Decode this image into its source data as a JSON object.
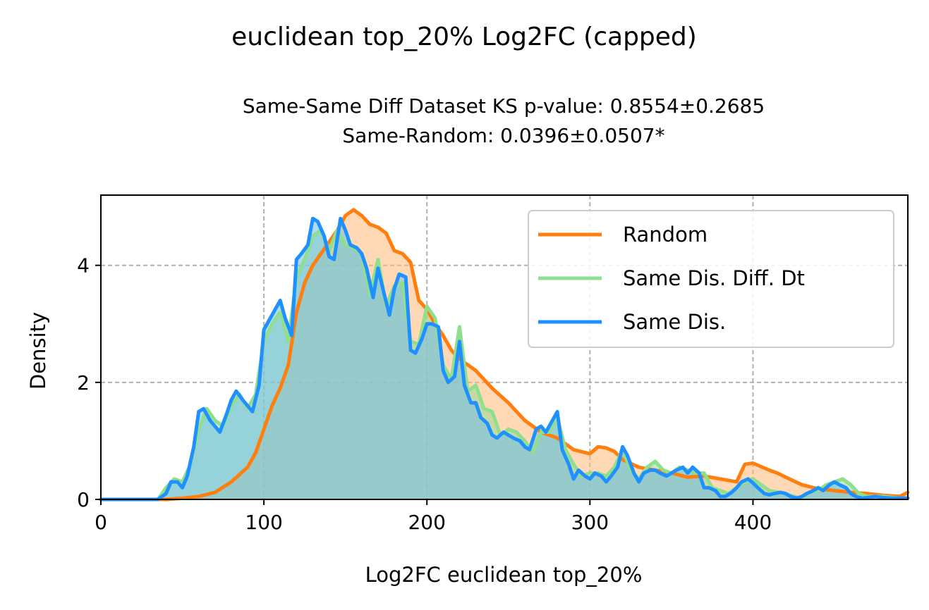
{
  "figure": {
    "title": "euclidean top_20% Log2FC (capped)",
    "subtitle_line1": "Same-Same Diff Dataset  KS p-value: 0.8554±0.2685",
    "subtitle_line2": "Same-Random: 0.0396±0.0507*"
  },
  "chart_data": {
    "type": "area",
    "xlabel": "Log2FC euclidean top_20%",
    "ylabel": "Density",
    "xlim": [
      0,
      495
    ],
    "ylim": [
      0,
      5.2
    ],
    "xticks": [
      0,
      100,
      200,
      300,
      400
    ],
    "yticks": [
      0,
      2,
      4
    ],
    "grid": true,
    "legend_position": "top-right",
    "series": [
      {
        "name": "Random",
        "color": "#ff7f0e",
        "fill": "#ffb97a",
        "points": [
          [
            0,
            0
          ],
          [
            30,
            0
          ],
          [
            40,
            0
          ],
          [
            50,
            0.02
          ],
          [
            60,
            0.05
          ],
          [
            70,
            0.12
          ],
          [
            80,
            0.3
          ],
          [
            90,
            0.55
          ],
          [
            95,
            0.8
          ],
          [
            100,
            1.2
          ],
          [
            105,
            1.6
          ],
          [
            110,
            1.9
          ],
          [
            115,
            2.3
          ],
          [
            120,
            3.2
          ],
          [
            125,
            3.7
          ],
          [
            130,
            4.0
          ],
          [
            135,
            4.2
          ],
          [
            140,
            4.4
          ],
          [
            145,
            4.6
          ],
          [
            150,
            4.85
          ],
          [
            155,
            4.95
          ],
          [
            160,
            4.85
          ],
          [
            165,
            4.7
          ],
          [
            170,
            4.65
          ],
          [
            175,
            4.55
          ],
          [
            180,
            4.25
          ],
          [
            185,
            4.2
          ],
          [
            190,
            4.05
          ],
          [
            195,
            3.4
          ],
          [
            200,
            3.25
          ],
          [
            205,
            3.0
          ],
          [
            210,
            2.8
          ],
          [
            215,
            2.55
          ],
          [
            220,
            2.4
          ],
          [
            225,
            2.3
          ],
          [
            230,
            2.2
          ],
          [
            240,
            1.9
          ],
          [
            250,
            1.65
          ],
          [
            260,
            1.35
          ],
          [
            270,
            1.15
          ],
          [
            280,
            1.05
          ],
          [
            290,
            0.85
          ],
          [
            300,
            0.78
          ],
          [
            305,
            0.9
          ],
          [
            310,
            0.88
          ],
          [
            315,
            0.82
          ],
          [
            320,
            0.68
          ],
          [
            330,
            0.55
          ],
          [
            340,
            0.5
          ],
          [
            350,
            0.45
          ],
          [
            360,
            0.38
          ],
          [
            370,
            0.4
          ],
          [
            380,
            0.35
          ],
          [
            390,
            0.3
          ],
          [
            395,
            0.6
          ],
          [
            400,
            0.62
          ],
          [
            410,
            0.5
          ],
          [
            415,
            0.45
          ],
          [
            420,
            0.38
          ],
          [
            430,
            0.25
          ],
          [
            440,
            0.18
          ],
          [
            450,
            0.15
          ],
          [
            460,
            0.12
          ],
          [
            470,
            0.1
          ],
          [
            480,
            0.07
          ],
          [
            490,
            0.05
          ],
          [
            495,
            0.12
          ]
        ]
      },
      {
        "name": "Same Dis. Diff. Dt",
        "color": "#90df8c",
        "fill": "#9ad798",
        "points": [
          [
            0,
            0
          ],
          [
            35,
            0
          ],
          [
            40,
            0.2
          ],
          [
            45,
            0.35
          ],
          [
            50,
            0.3
          ],
          [
            55,
            0.6
          ],
          [
            60,
            1.2
          ],
          [
            65,
            1.55
          ],
          [
            70,
            1.35
          ],
          [
            75,
            1.25
          ],
          [
            80,
            1.6
          ],
          [
            85,
            1.8
          ],
          [
            90,
            1.55
          ],
          [
            95,
            1.8
          ],
          [
            100,
            2.7
          ],
          [
            105,
            3.0
          ],
          [
            110,
            3.2
          ],
          [
            115,
            2.7
          ],
          [
            120,
            3.8
          ],
          [
            125,
            4.1
          ],
          [
            130,
            4.5
          ],
          [
            135,
            4.6
          ],
          [
            140,
            4.25
          ],
          [
            145,
            4.6
          ],
          [
            150,
            4.35
          ],
          [
            155,
            4.3
          ],
          [
            160,
            4.2
          ],
          [
            165,
            3.5
          ],
          [
            170,
            4.1
          ],
          [
            175,
            3.3
          ],
          [
            180,
            3.65
          ],
          [
            185,
            3.7
          ],
          [
            190,
            2.7
          ],
          [
            195,
            2.65
          ],
          [
            200,
            3.3
          ],
          [
            205,
            3.1
          ],
          [
            210,
            2.3
          ],
          [
            215,
            2.05
          ],
          [
            220,
            2.95
          ],
          [
            225,
            1.85
          ],
          [
            230,
            1.95
          ],
          [
            235,
            1.55
          ],
          [
            240,
            1.5
          ],
          [
            245,
            1.1
          ],
          [
            250,
            1.2
          ],
          [
            255,
            1.15
          ],
          [
            260,
            1.0
          ],
          [
            265,
            0.8
          ],
          [
            270,
            1.15
          ],
          [
            275,
            1.15
          ],
          [
            280,
            1.4
          ],
          [
            285,
            0.85
          ],
          [
            290,
            0.6
          ],
          [
            295,
            0.4
          ],
          [
            300,
            0.45
          ],
          [
            305,
            0.45
          ],
          [
            310,
            0.4
          ],
          [
            315,
            0.55
          ],
          [
            320,
            0.85
          ],
          [
            325,
            0.5
          ],
          [
            330,
            0.35
          ],
          [
            335,
            0.55
          ],
          [
            340,
            0.65
          ],
          [
            345,
            0.5
          ],
          [
            350,
            0.45
          ],
          [
            355,
            0.55
          ],
          [
            360,
            0.5
          ],
          [
            365,
            0.45
          ],
          [
            370,
            0.45
          ],
          [
            375,
            0.2
          ],
          [
            380,
            0.15
          ],
          [
            385,
            0.1
          ],
          [
            390,
            0.2
          ],
          [
            395,
            0.3
          ],
          [
            400,
            0.35
          ],
          [
            405,
            0.25
          ],
          [
            410,
            0.15
          ],
          [
            420,
            0.1
          ],
          [
            425,
            0.05
          ],
          [
            430,
            0.02
          ],
          [
            435,
            0.12
          ],
          [
            440,
            0.15
          ],
          [
            445,
            0.25
          ],
          [
            450,
            0.3
          ],
          [
            455,
            0.35
          ],
          [
            460,
            0.25
          ],
          [
            465,
            0.1
          ],
          [
            470,
            0.05
          ],
          [
            480,
            0.05
          ],
          [
            490,
            0.02
          ],
          [
            495,
            0.02
          ]
        ]
      },
      {
        "name": "Same Dis.",
        "color": "#1e90ff",
        "fill": "#6ec0eb",
        "points": [
          [
            0,
            0
          ],
          [
            35,
            0
          ],
          [
            40,
            0.1
          ],
          [
            43,
            0.3
          ],
          [
            47,
            0.3
          ],
          [
            50,
            0.2
          ],
          [
            53,
            0.4
          ],
          [
            57,
            0.9
          ],
          [
            60,
            1.5
          ],
          [
            63,
            1.55
          ],
          [
            67,
            1.35
          ],
          [
            70,
            1.25
          ],
          [
            73,
            1.15
          ],
          [
            77,
            1.45
          ],
          [
            80,
            1.7
          ],
          [
            83,
            1.85
          ],
          [
            87,
            1.7
          ],
          [
            90,
            1.6
          ],
          [
            93,
            1.5
          ],
          [
            97,
            1.95
          ],
          [
            100,
            2.9
          ],
          [
            103,
            3.05
          ],
          [
            107,
            3.25
          ],
          [
            110,
            3.4
          ],
          [
            113,
            3.1
          ],
          [
            117,
            2.8
          ],
          [
            120,
            4.1
          ],
          [
            123,
            4.2
          ],
          [
            127,
            4.35
          ],
          [
            130,
            4.8
          ],
          [
            133,
            4.75
          ],
          [
            137,
            4.5
          ],
          [
            140,
            4.15
          ],
          [
            143,
            4.1
          ],
          [
            147,
            4.8
          ],
          [
            150,
            4.6
          ],
          [
            153,
            4.35
          ],
          [
            157,
            4.3
          ],
          [
            160,
            4.2
          ],
          [
            163,
            3.95
          ],
          [
            167,
            3.45
          ],
          [
            170,
            3.95
          ],
          [
            173,
            3.6
          ],
          [
            177,
            3.15
          ],
          [
            180,
            3.6
          ],
          [
            183,
            3.85
          ],
          [
            187,
            3.8
          ],
          [
            190,
            2.55
          ],
          [
            193,
            2.5
          ],
          [
            197,
            2.75
          ],
          [
            200,
            3.0
          ],
          [
            203,
            3.0
          ],
          [
            207,
            2.95
          ],
          [
            210,
            2.2
          ],
          [
            213,
            2.0
          ],
          [
            217,
            2.1
          ],
          [
            220,
            2.7
          ],
          [
            223,
            1.95
          ],
          [
            227,
            1.65
          ],
          [
            230,
            1.65
          ],
          [
            233,
            1.4
          ],
          [
            237,
            1.3
          ],
          [
            240,
            1.1
          ],
          [
            243,
            1.05
          ],
          [
            247,
            1.15
          ],
          [
            250,
            1.1
          ],
          [
            253,
            1.05
          ],
          [
            257,
            1.0
          ],
          [
            260,
            0.9
          ],
          [
            263,
            0.85
          ],
          [
            267,
            1.2
          ],
          [
            270,
            1.25
          ],
          [
            273,
            1.15
          ],
          [
            277,
            1.35
          ],
          [
            280,
            1.5
          ],
          [
            283,
            0.85
          ],
          [
            287,
            0.6
          ],
          [
            290,
            0.35
          ],
          [
            293,
            0.5
          ],
          [
            297,
            0.4
          ],
          [
            300,
            0.35
          ],
          [
            303,
            0.45
          ],
          [
            307,
            0.4
          ],
          [
            310,
            0.3
          ],
          [
            313,
            0.4
          ],
          [
            317,
            0.55
          ],
          [
            320,
            0.9
          ],
          [
            323,
            0.75
          ],
          [
            327,
            0.45
          ],
          [
            330,
            0.3
          ],
          [
            333,
            0.45
          ],
          [
            337,
            0.5
          ],
          [
            340,
            0.5
          ],
          [
            343,
            0.45
          ],
          [
            347,
            0.4
          ],
          [
            350,
            0.45
          ],
          [
            353,
            0.5
          ],
          [
            357,
            0.55
          ],
          [
            360,
            0.45
          ],
          [
            363,
            0.55
          ],
          [
            367,
            0.45
          ],
          [
            370,
            0.2
          ],
          [
            373,
            0.2
          ],
          [
            377,
            0.15
          ],
          [
            380,
            0.05
          ],
          [
            383,
            0.05
          ],
          [
            387,
            0.12
          ],
          [
            390,
            0.2
          ],
          [
            393,
            0.3
          ],
          [
            397,
            0.35
          ],
          [
            400,
            0.28
          ],
          [
            403,
            0.2
          ],
          [
            407,
            0.1
          ],
          [
            410,
            0.08
          ],
          [
            413,
            0.1
          ],
          [
            417,
            0.12
          ],
          [
            420,
            0.1
          ],
          [
            423,
            0.05
          ],
          [
            427,
            0.02
          ],
          [
            430,
            0.05
          ],
          [
            433,
            0.1
          ],
          [
            437,
            0.15
          ],
          [
            440,
            0.2
          ],
          [
            443,
            0.15
          ],
          [
            447,
            0.25
          ],
          [
            450,
            0.3
          ],
          [
            453,
            0.25
          ],
          [
            457,
            0.2
          ],
          [
            460,
            0.1
          ],
          [
            463,
            0.05
          ],
          [
            467,
            0.02
          ],
          [
            470,
            0.03
          ],
          [
            475,
            0.05
          ],
          [
            480,
            0.03
          ],
          [
            485,
            0.02
          ],
          [
            490,
            0.02
          ],
          [
            495,
            0.02
          ]
        ]
      }
    ]
  }
}
